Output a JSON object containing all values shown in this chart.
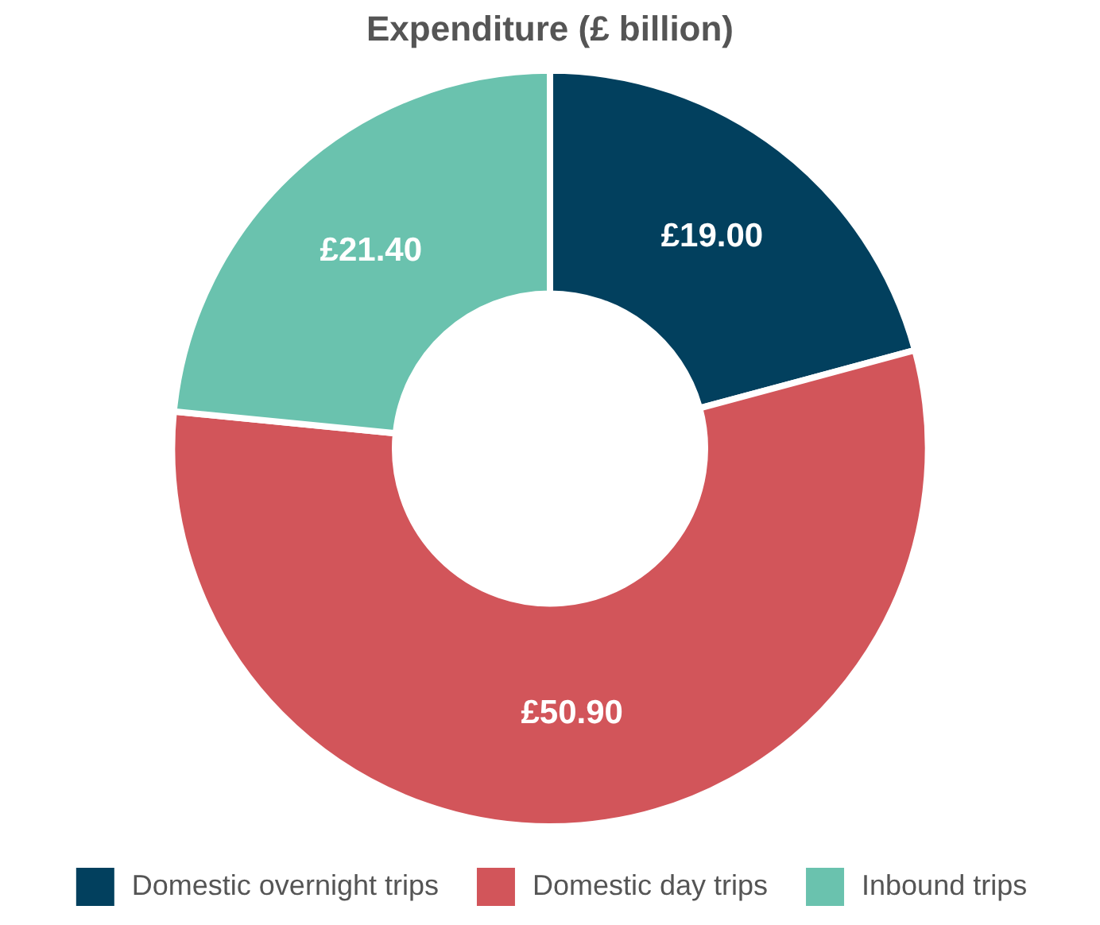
{
  "chart_data": {
    "type": "donut",
    "title": "Expenditure (£ billion)",
    "categories": [
      "Domestic overnight trips",
      "Domestic day trips",
      "Inbound trips"
    ],
    "values": [
      19.0,
      50.9,
      21.4
    ],
    "colors": [
      "#02405e",
      "#d2555a",
      "#6ac2ae"
    ],
    "value_labels": [
      "£19.00",
      "£50.90",
      "£21.40"
    ],
    "legend": "bottom"
  }
}
